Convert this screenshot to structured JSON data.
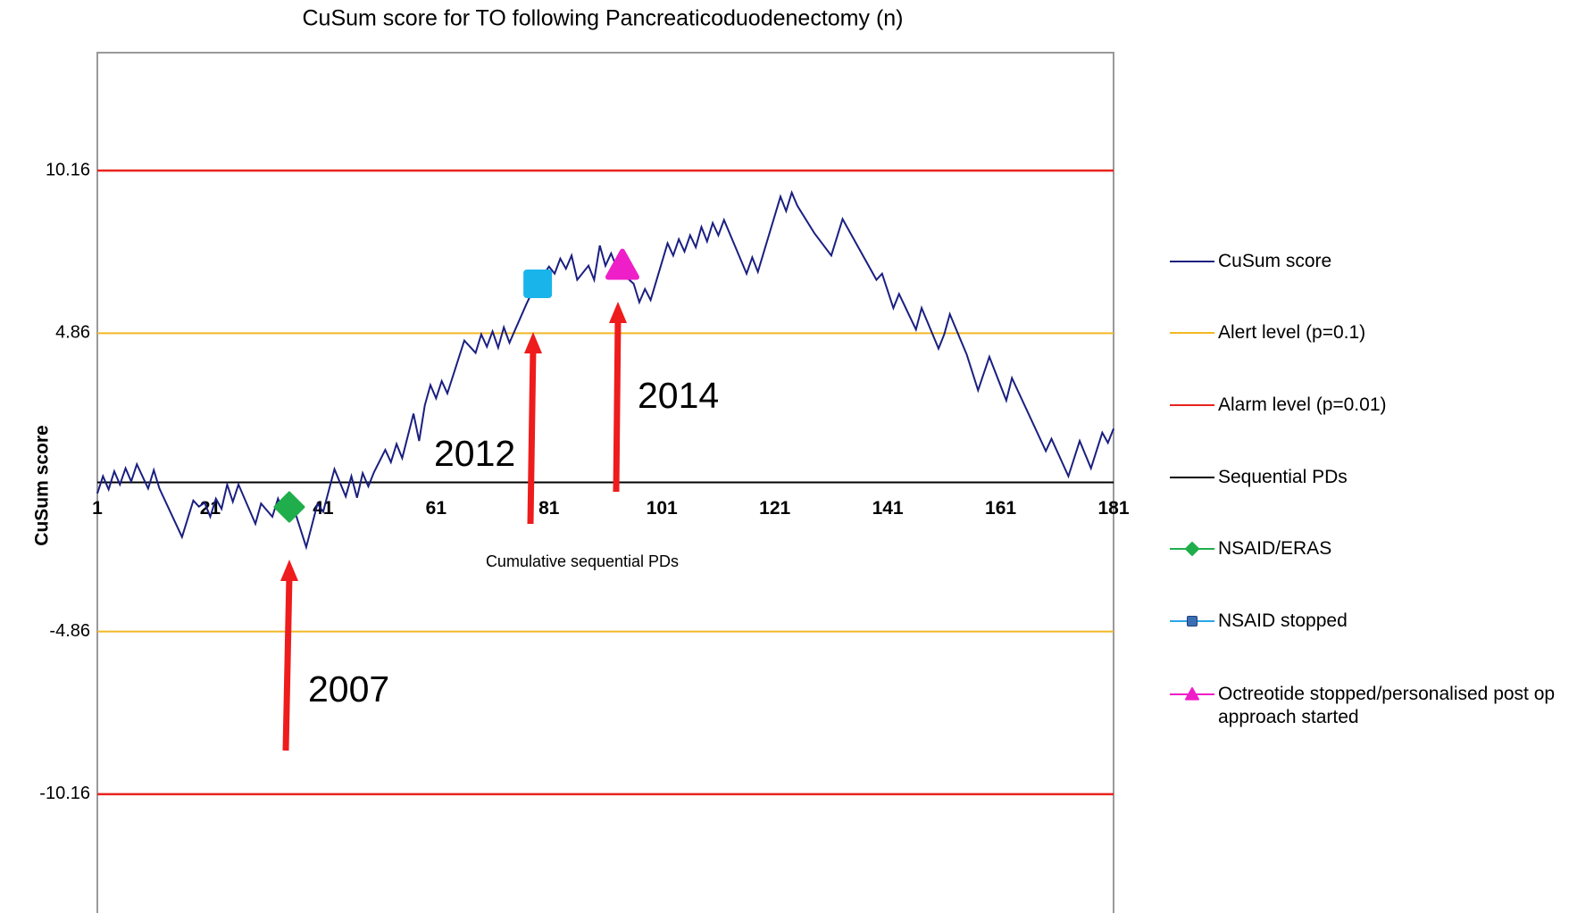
{
  "chart_data": {
    "type": "line",
    "title": "CuSum score for TO following Pancreaticoduodenectomy  (n)",
    "xlabel": "Cumulative sequential PDs",
    "ylabel": "CuSum score",
    "xlim": [
      1,
      181
    ],
    "ylim": [
      -14,
      14
    ],
    "xticks": [
      1,
      21,
      41,
      61,
      81,
      101,
      121,
      141,
      161,
      181
    ],
    "yticks": [
      -10.16,
      -4.86,
      4.86,
      10.16
    ],
    "series": [
      {
        "name": "CuSum score",
        "color": "#1a1f80",
        "x": [
          1,
          2,
          3,
          4,
          5,
          6,
          7,
          8,
          10,
          11,
          12,
          16,
          18,
          19,
          20,
          21,
          22,
          23,
          24,
          25,
          26,
          29,
          30,
          32,
          33,
          34,
          35,
          36,
          38,
          40,
          41,
          42,
          43,
          45,
          46,
          47,
          48,
          49,
          50,
          52,
          53,
          54,
          55,
          57,
          58,
          59,
          60,
          61,
          62,
          63,
          66,
          68,
          69,
          70,
          71,
          72,
          73,
          74,
          77,
          78,
          81,
          82,
          83,
          84,
          85,
          86,
          88,
          89,
          90,
          91,
          92,
          93,
          94,
          96,
          97,
          98,
          99,
          102,
          103,
          104,
          105,
          106,
          107,
          108,
          109,
          110,
          111,
          112,
          116,
          117,
          118,
          122,
          123,
          124,
          125,
          128,
          131,
          133,
          139,
          140,
          142,
          143,
          146,
          147,
          150,
          151,
          152,
          155,
          157,
          159,
          162,
          163,
          169,
          170,
          173,
          175,
          177,
          179,
          180,
          181
        ],
        "values": [
          -0.36,
          0.2,
          -0.23,
          0.36,
          -0.07,
          0.46,
          0.03,
          0.59,
          -0.2,
          0.4,
          -0.2,
          -1.78,
          -0.59,
          -0.79,
          -0.66,
          -1.12,
          -0.53,
          -0.86,
          -0.07,
          -0.63,
          -0.07,
          -1.35,
          -0.69,
          -1.12,
          -0.53,
          -0.99,
          -0.53,
          -0.96,
          -2.11,
          -0.69,
          -0.96,
          -0.26,
          0.43,
          -0.46,
          0.2,
          -0.5,
          0.3,
          -0.13,
          0.33,
          1.06,
          0.66,
          1.25,
          0.79,
          2.24,
          1.35,
          2.51,
          3.17,
          2.74,
          3.3,
          2.9,
          4.62,
          4.22,
          4.82,
          4.42,
          4.92,
          4.39,
          5.05,
          4.55,
          5.81,
          6.2,
          7.03,
          6.8,
          7.29,
          6.96,
          7.39,
          6.6,
          7.06,
          6.6,
          7.72,
          7.06,
          7.46,
          7.0,
          6.8,
          6.47,
          5.87,
          6.3,
          5.94,
          7.79,
          7.39,
          7.92,
          7.52,
          8.05,
          7.66,
          8.32,
          7.85,
          8.45,
          8.05,
          8.55,
          6.8,
          7.33,
          6.86,
          9.31,
          8.84,
          9.44,
          9.01,
          8.12,
          7.39,
          8.58,
          6.6,
          6.8,
          5.68,
          6.14,
          4.98,
          5.68,
          4.36,
          4.82,
          5.48,
          4.16,
          3.0,
          4.09,
          2.67,
          3.4,
          1.02,
          1.42,
          0.2,
          1.35,
          0.46,
          1.62,
          1.29,
          1.75
        ]
      },
      {
        "name": "NSAID/ERAS",
        "color": "#1fae4b",
        "marker": "diamond",
        "x": [
          35
        ],
        "values": [
          -0.8
        ]
      },
      {
        "name": "NSAID stopped",
        "color": "#19b4ea",
        "marker": "square",
        "x": [
          79
        ],
        "values": [
          6.47
        ]
      },
      {
        "name": "Octreotide stopped/personalised post op approach started",
        "color": "#ee1fc8",
        "marker": "triangle",
        "x": [
          94
        ],
        "values": [
          7.06
        ]
      }
    ],
    "reference_lines": [
      {
        "name": "Alert level (p=0.1)",
        "color": "#f2b824",
        "values": [
          4.86,
          -4.86
        ]
      },
      {
        "name": "Alarm level (p=0.01)",
        "color": "#e8231d",
        "values": [
          10.16,
          -10.16
        ]
      },
      {
        "name": "Sequential PDs",
        "color": "#000000",
        "values": [
          0
        ]
      }
    ],
    "annotations": [
      {
        "text": "2007"
      },
      {
        "text": "2012"
      },
      {
        "text": "2014"
      }
    ]
  }
}
